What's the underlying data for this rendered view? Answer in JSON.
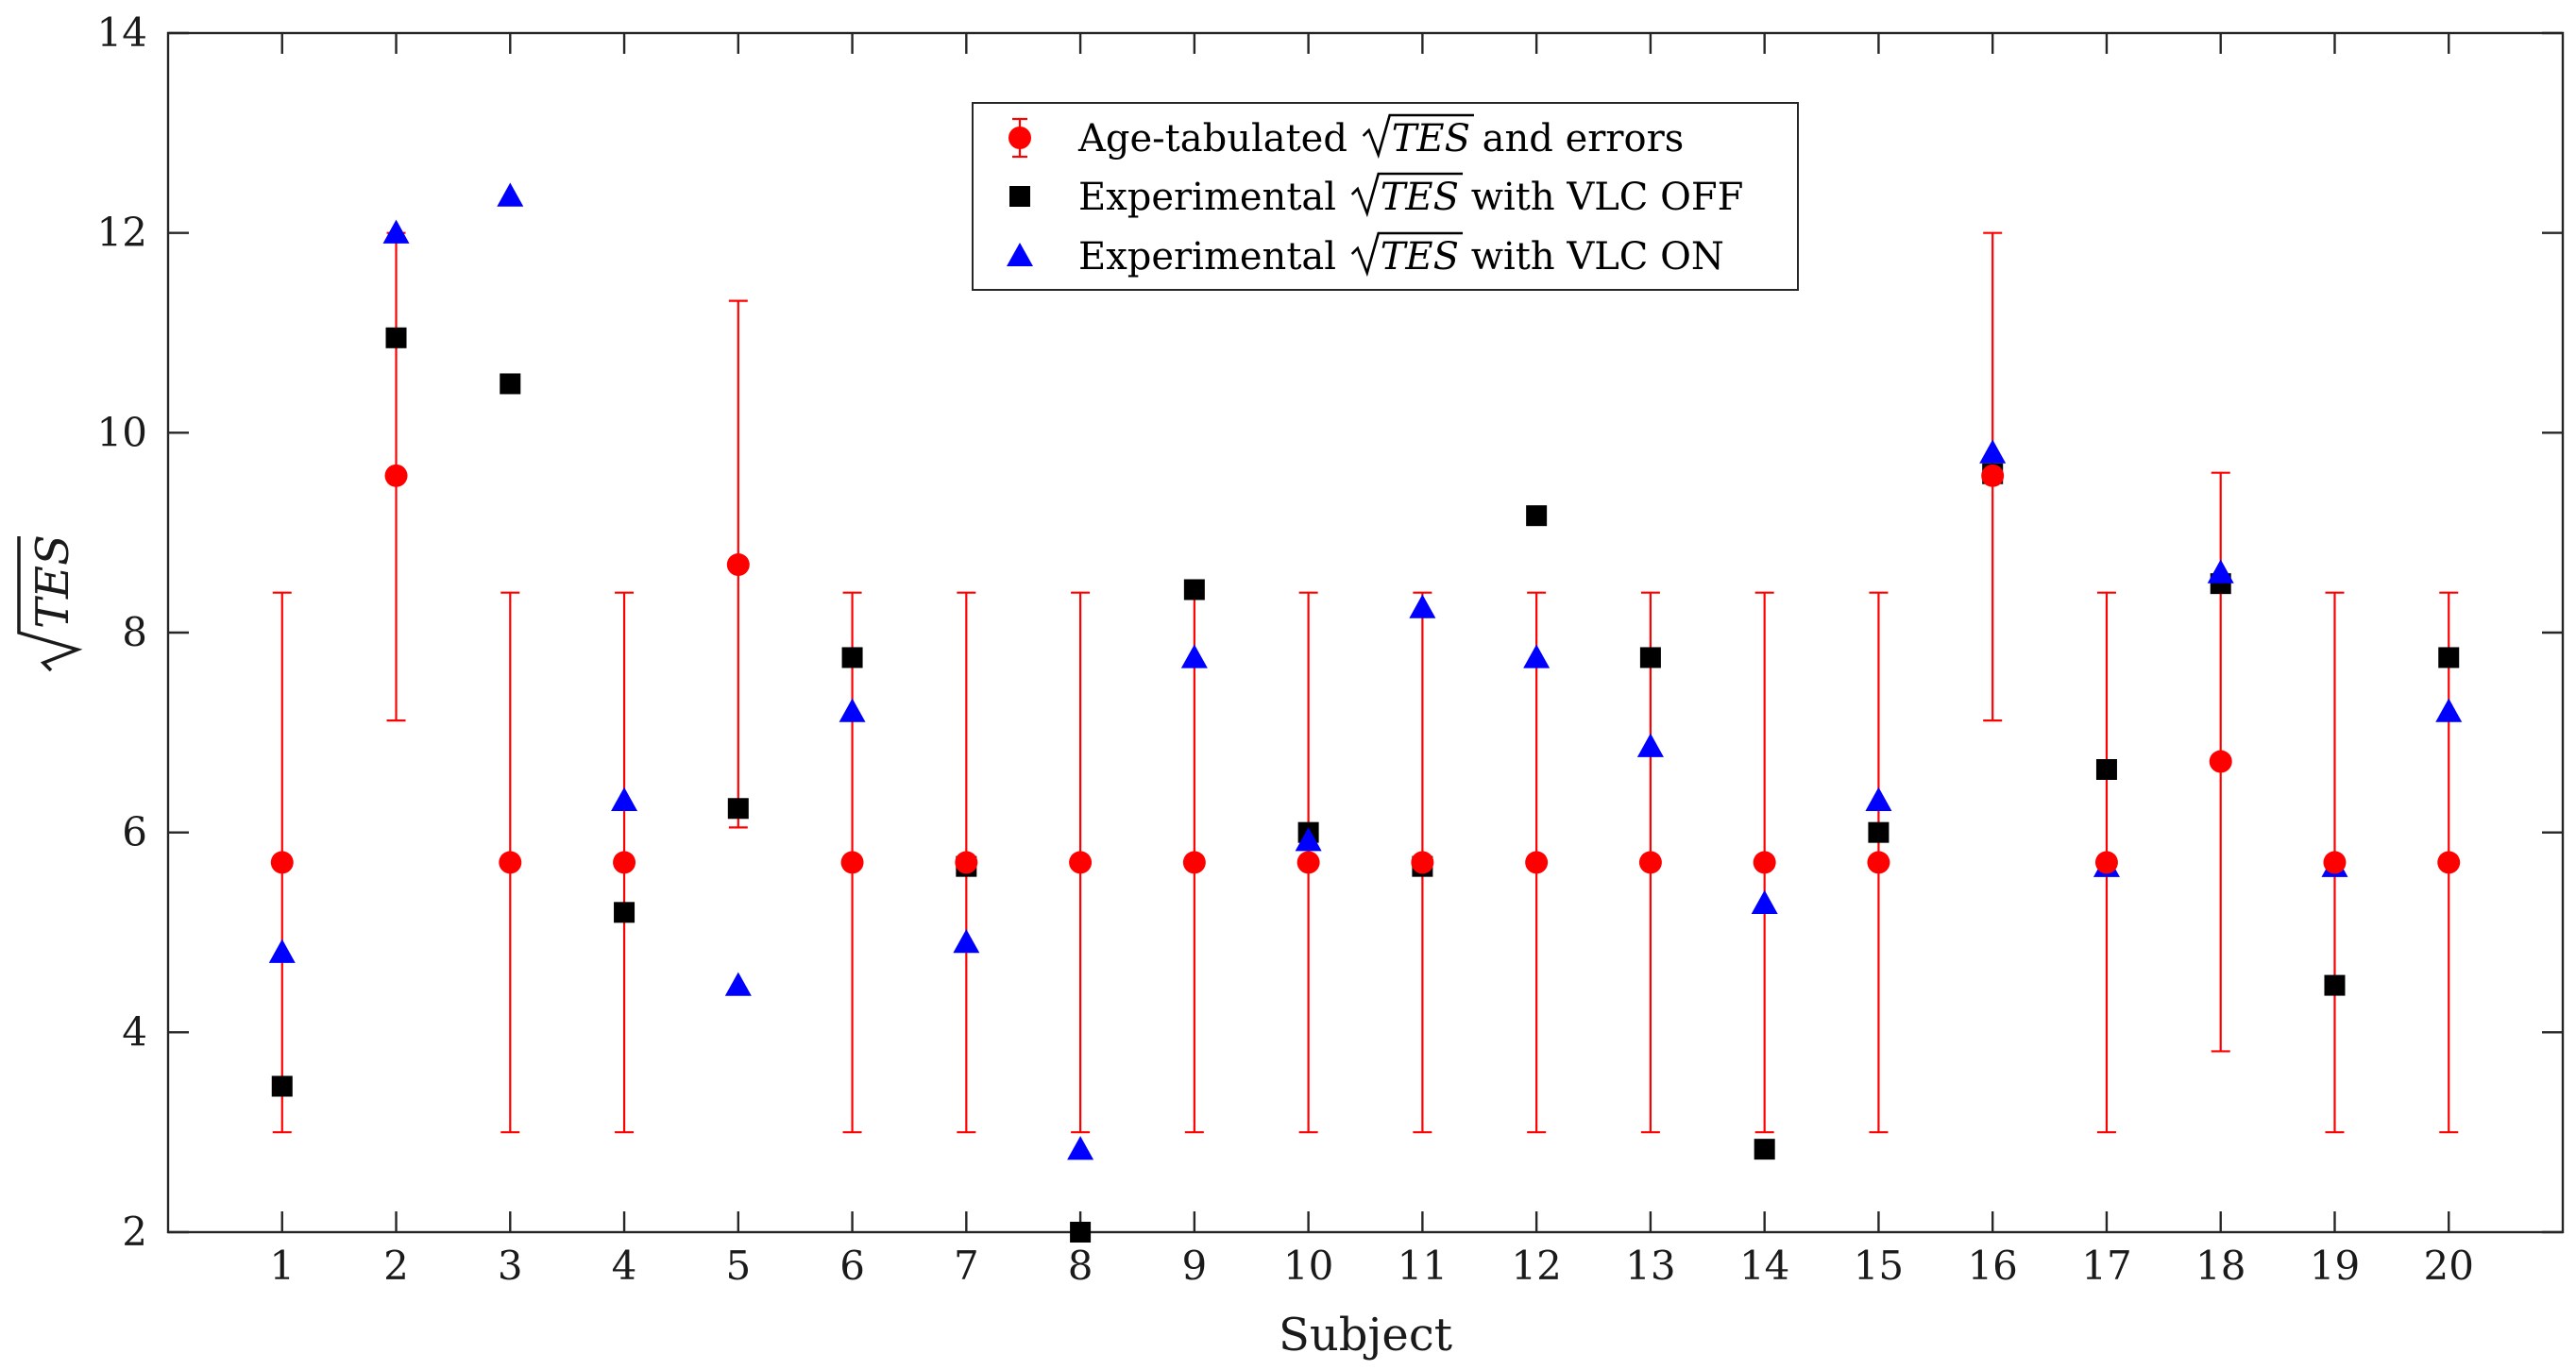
{
  "chart_data": {
    "type": "scatter",
    "title": "",
    "xlabel": "Subject",
    "ylabel": "TES",
    "ylabel_math": "sqrt",
    "xlim": [
      0,
      21
    ],
    "ylim": [
      2,
      14
    ],
    "x": [
      1,
      2,
      3,
      4,
      5,
      6,
      7,
      8,
      9,
      10,
      11,
      12,
      13,
      14,
      15,
      16,
      17,
      18,
      19,
      20
    ],
    "x_tick_labels": [
      "1",
      "2",
      "3",
      "4",
      "5",
      "6",
      "7",
      "8",
      "9",
      "10",
      "11",
      "12",
      "13",
      "14",
      "15",
      "16",
      "17",
      "18",
      "19",
      "20"
    ],
    "y_ticks": [
      2,
      4,
      6,
      8,
      10,
      12,
      14
    ],
    "y_tick_labels": [
      "2",
      "4",
      "6",
      "8",
      "10",
      "12",
      "14"
    ],
    "series": [
      {
        "name": "Age-tabulated",
        "marker": "circle",
        "color": "#ff0000",
        "values": [
          5.7,
          9.57,
          5.7,
          5.7,
          8.68,
          5.7,
          5.7,
          5.7,
          5.7,
          5.7,
          5.7,
          5.7,
          5.7,
          5.7,
          5.7,
          9.57,
          5.7,
          6.71,
          5.7,
          5.7
        ],
        "err_low": [
          3.0,
          7.12,
          3.0,
          3.0,
          6.05,
          3.0,
          3.0,
          3.0,
          3.0,
          3.0,
          3.0,
          3.0,
          3.0,
          3.0,
          3.0,
          7.12,
          3.0,
          3.81,
          3.0,
          3.0
        ],
        "err_high": [
          8.4,
          12.0,
          8.4,
          8.4,
          11.32,
          8.4,
          8.4,
          8.4,
          8.4,
          8.4,
          8.4,
          8.4,
          8.4,
          8.4,
          8.4,
          12.0,
          8.4,
          9.6,
          8.4,
          8.4
        ]
      },
      {
        "name": "Experimental VLC OFF",
        "marker": "square",
        "color": "#000000",
        "values": [
          3.46,
          10.95,
          10.49,
          5.2,
          6.24,
          7.75,
          5.66,
          2.0,
          8.43,
          6.0,
          5.66,
          9.17,
          7.75,
          2.83,
          6.0,
          9.59,
          6.63,
          8.49,
          4.47,
          7.75
        ]
      },
      {
        "name": "Experimental VLC ON",
        "marker": "triangle",
        "color": "#0000ff",
        "values": [
          4.8,
          12.0,
          12.37,
          6.32,
          4.47,
          7.21,
          4.9,
          2.83,
          7.75,
          5.92,
          8.25,
          7.75,
          6.86,
          5.29,
          6.32,
          9.8,
          5.66,
          8.6,
          5.66,
          7.21
        ]
      }
    ],
    "legend": {
      "placement": "top-center",
      "entries": [
        {
          "prefix": "Age-tabulated ",
          "math": "TES",
          "suffix": " and errors"
        },
        {
          "prefix": "Experimental ",
          "math": "TES",
          "suffix": " with VLC OFF"
        },
        {
          "prefix": "Experimental ",
          "math": "TES",
          "suffix": " with VLC ON"
        }
      ]
    }
  }
}
